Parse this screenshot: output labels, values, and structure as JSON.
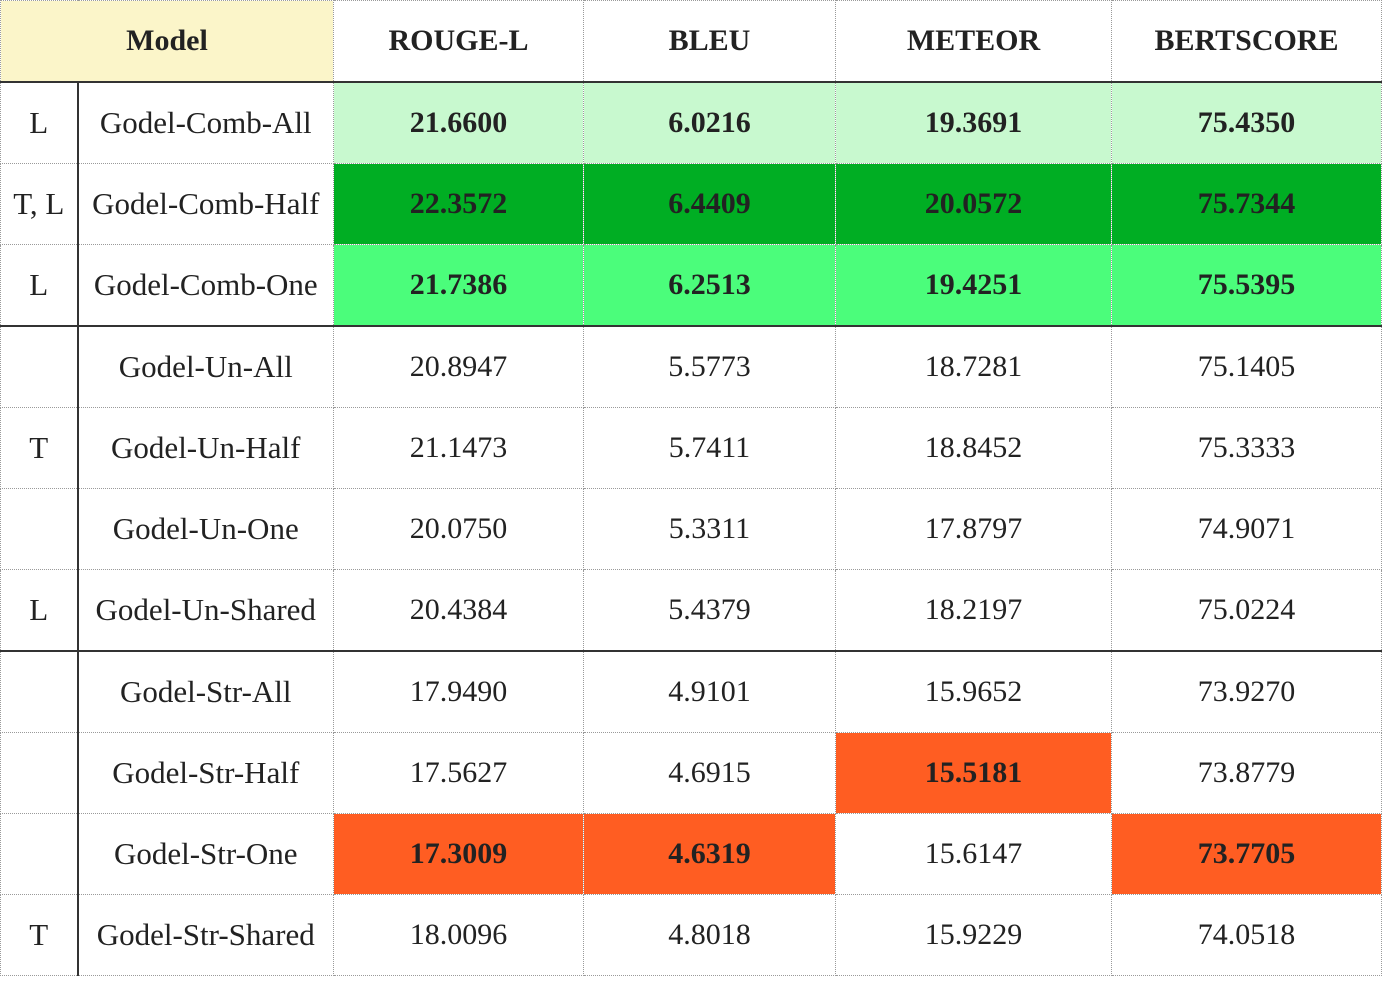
{
  "header": {
    "model": "Model",
    "rouge": "ROUGE-L",
    "bleu": "BLEU",
    "meteor": "METEOR",
    "bertscore": "BERTSCORE"
  },
  "colors": {
    "header_model_bg": "#fbf5c9",
    "best_light": "#c8f9cf",
    "best_dark": "#00ae23",
    "best_mid": "#4bfd7b",
    "worst": "#ff5d22"
  },
  "rows": [
    {
      "tag": "L",
      "name": "Godel-Comb-All",
      "rouge": "21.6600",
      "bleu": "6.0216",
      "meteor": "19.3691",
      "bert": "75.4350"
    },
    {
      "tag": "T, L",
      "name": "Godel-Comb-Half",
      "rouge": "22.3572",
      "bleu": "6.4409",
      "meteor": "20.0572",
      "bert": "75.7344"
    },
    {
      "tag": "L",
      "name": "Godel-Comb-One",
      "rouge": "21.7386",
      "bleu": "6.2513",
      "meteor": "19.4251",
      "bert": "75.5395"
    },
    {
      "tag": "",
      "name": "Godel-Un-All",
      "rouge": "20.8947",
      "bleu": "5.5773",
      "meteor": "18.7281",
      "bert": "75.1405"
    },
    {
      "tag": "T",
      "name": "Godel-Un-Half",
      "rouge": "21.1473",
      "bleu": "5.7411",
      "meteor": "18.8452",
      "bert": "75.3333"
    },
    {
      "tag": "",
      "name": "Godel-Un-One",
      "rouge": "20.0750",
      "bleu": "5.3311",
      "meteor": "17.8797",
      "bert": "74.9071"
    },
    {
      "tag": "L",
      "name": "Godel-Un-Shared",
      "rouge": "20.4384",
      "bleu": "5.4379",
      "meteor": "18.2197",
      "bert": "75.0224"
    },
    {
      "tag": "",
      "name": "Godel-Str-All",
      "rouge": "17.9490",
      "bleu": "4.9101",
      "meteor": "15.9652",
      "bert": "73.9270"
    },
    {
      "tag": "",
      "name": "Godel-Str-Half",
      "rouge": "17.5627",
      "bleu": "4.6915",
      "meteor": "15.5181",
      "bert": "73.8779"
    },
    {
      "tag": "",
      "name": "Godel-Str-One",
      "rouge": "17.3009",
      "bleu": "4.6319",
      "meteor": "15.6147",
      "bert": "73.7705"
    },
    {
      "tag": "T",
      "name": "Godel-Str-Shared",
      "rouge": "18.0096",
      "bleu": "4.8018",
      "meteor": "15.9229",
      "bert": "74.0518"
    }
  ]
}
